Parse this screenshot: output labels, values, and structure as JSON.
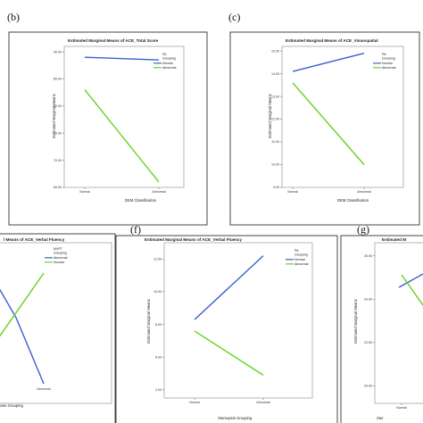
{
  "panels": [
    {
      "letter": "(b)",
      "title": "Estimated Marginal Means of ACE_Total Score",
      "xlabel": "DEM Classification",
      "ylabel": "Estimated Marginal Means",
      "legend_title": [
        "PA",
        "Grouping"
      ],
      "categories": [
        "Normal",
        "Abnormal"
      ],
      "y_ticks": [
        "90.00",
        "85.00",
        "80.00",
        "75.00",
        "70.00",
        "65.00"
      ],
      "series": [
        {
          "name": "Normal",
          "color": "#3a5fcd",
          "values": [
            89.0,
            88.5
          ]
        },
        {
          "name": "Abnormal",
          "color": "#63d21e",
          "values": [
            83.0,
            66.0
          ]
        }
      ]
    },
    {
      "letter": "(c)",
      "title": "Estimated Marginal Means of ACE_Visuospatial",
      "xlabel": "DEM Classification",
      "ylabel": "Estimated Marginal Means",
      "legend_title": [
        "PA",
        "Grouping"
      ],
      "categories": [
        "Normal",
        "Abnormal"
      ],
      "y_ticks": [
        "15.00",
        "14.00",
        "13.00",
        "12.00",
        "11.00",
        "10.00",
        "9.00"
      ],
      "series": [
        {
          "name": "Normal",
          "color": "#3a5fcd",
          "values": [
            14.1,
            14.9
          ]
        },
        {
          "name": "Abnormal",
          "color": "#63d21e",
          "values": [
            13.6,
            10.0
          ]
        }
      ]
    },
    {
      "letter": "",
      "title": "l Means of ACE_Verbal Fluency",
      "xlabel": "osis Grouping",
      "ylabel": "",
      "legend_title": [
        "MVPT",
        "Grouping"
      ],
      "categories": [
        "",
        "Abnormal"
      ],
      "y_ticks": [],
      "series": [
        {
          "name": "Abnormal",
          "color": "#3a5fcd"
        },
        {
          "name": "Normal",
          "color": "#63d21e"
        }
      ]
    },
    {
      "letter": "(f)",
      "title": "Estimated Marginal Means of ACE_Verbal Fluency",
      "xlabel": "Stereopsis Grouping",
      "ylabel": "Estimated Marginal Means",
      "legend_title": [
        "PA",
        "Grouping"
      ],
      "categories": [
        "Normal",
        "Abnormal"
      ],
      "y_ticks": [
        "12.00",
        "10.00",
        "8.00",
        "6.00",
        "4.00"
      ],
      "series": [
        {
          "name": "Normal",
          "color": "#3a5fcd",
          "values": [
            8.3,
            12.2
          ]
        },
        {
          "name": "Abnormal",
          "color": "#63d21e",
          "values": [
            7.6,
            4.9
          ]
        }
      ]
    },
    {
      "letter": "(g)",
      "title": "Estimated M",
      "xlabel": "Ster",
      "ylabel": "Estimated Marginal Means",
      "legend_title": [],
      "categories": [
        "Normal"
      ],
      "y_ticks": [
        "26.00",
        "24.00",
        "22.00",
        "20.00"
      ],
      "series": [
        {
          "name": "",
          "color": "#3a5fcd"
        },
        {
          "name": "",
          "color": "#63d21e"
        }
      ]
    }
  ],
  "chart_data": [
    {
      "type": "line",
      "title": "Estimated Marginal Means of ACE_Total Score",
      "xlabel": "DEM Classification",
      "ylabel": "Estimated Marginal Means",
      "categories": [
        "Normal",
        "Abnormal"
      ],
      "ylim": [
        65,
        91
      ],
      "legend": "top-right",
      "series": [
        {
          "name": "Normal",
          "values": [
            89.0,
            88.5
          ]
        },
        {
          "name": "Abnormal",
          "values": [
            83.0,
            66.0
          ]
        }
      ]
    },
    {
      "type": "line",
      "title": "Estimated Marginal Means of ACE_Visuospatial",
      "xlabel": "DEM Classification",
      "ylabel": "Estimated Marginal Means",
      "categories": [
        "Normal",
        "Abnormal"
      ],
      "ylim": [
        9,
        15.2
      ],
      "legend": "top-right",
      "series": [
        {
          "name": "Normal",
          "values": [
            14.1,
            14.9
          ]
        },
        {
          "name": "Abnormal",
          "values": [
            13.6,
            10.0
          ]
        }
      ]
    },
    {
      "type": "line",
      "title": "Estimated Marginal Means of ACE_Verbal Fluency",
      "xlabel": "Stereopsis Grouping",
      "ylabel": "Estimated Marginal Means",
      "categories": [
        "Normal",
        "Abnormal"
      ],
      "ylim": [
        3.5,
        13
      ],
      "legend": "top-right",
      "series": [
        {
          "name": "Normal",
          "values": [
            8.3,
            12.2
          ]
        },
        {
          "name": "Abnormal",
          "values": [
            7.6,
            4.9
          ]
        }
      ]
    }
  ]
}
